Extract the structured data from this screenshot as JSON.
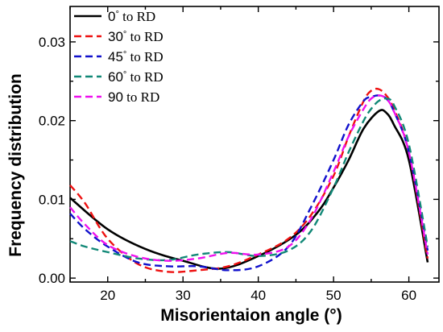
{
  "chart_data": {
    "type": "line",
    "xlabel": "Misorientaion angle (°)",
    "ylabel": "Frequency distribution",
    "xlim": [
      15,
      64
    ],
    "ylim": [
      -0.0005,
      0.0345
    ],
    "xticks": [
      20,
      30,
      40,
      50,
      60
    ],
    "yticks": [
      0.0,
      0.01,
      0.02,
      0.03
    ],
    "ytick_labels": [
      "0.00",
      "0.01",
      "0.02",
      "0.03"
    ],
    "grid": false,
    "legend_position": "top-left",
    "series": [
      {
        "name": "0°  to RD",
        "name_parts": [
          "0",
          "°",
          "  to RD"
        ],
        "color": "#000000",
        "dash": "solid",
        "x": [
          15,
          20,
          25,
          30,
          35,
          40,
          45,
          48,
          50,
          52,
          54,
          56,
          57,
          58,
          60,
          62.5
        ],
        "y": [
          0.0102,
          0.0062,
          0.0037,
          0.0022,
          0.0012,
          0.0028,
          0.0055,
          0.0085,
          0.0115,
          0.015,
          0.019,
          0.0212,
          0.021,
          0.0195,
          0.015,
          0.002
        ]
      },
      {
        "name": "30° to RD",
        "name_parts": [
          "30",
          "°",
          " to RD"
        ],
        "color": "#ee1111",
        "dash": "dashed",
        "x": [
          15,
          17,
          20,
          24,
          28,
          32,
          36,
          40,
          44,
          47,
          50,
          52,
          54,
          55,
          56,
          57,
          58,
          60,
          62.5
        ],
        "y": [
          0.0118,
          0.0095,
          0.005,
          0.0018,
          0.0008,
          0.001,
          0.0015,
          0.003,
          0.005,
          0.008,
          0.013,
          0.018,
          0.0225,
          0.0238,
          0.024,
          0.0232,
          0.0215,
          0.016,
          0.0025
        ]
      },
      {
        "name": "45° to RD",
        "name_parts": [
          "45",
          "°",
          " to RD"
        ],
        "color": "#1111cc",
        "dash": "dashed",
        "x": [
          15,
          17,
          20,
          24,
          28,
          32,
          36,
          40,
          44,
          47,
          50,
          52,
          54,
          55,
          56,
          57,
          58,
          60,
          62.5
        ],
        "y": [
          0.0082,
          0.0062,
          0.004,
          0.002,
          0.0015,
          0.0015,
          0.001,
          0.0015,
          0.004,
          0.009,
          0.015,
          0.0195,
          0.0225,
          0.023,
          0.0232,
          0.0228,
          0.0212,
          0.016,
          0.0035
        ]
      },
      {
        "name": "60° to RD",
        "name_parts": [
          "60",
          "°",
          " to RD"
        ],
        "color": "#118877",
        "dash": "dashed",
        "x": [
          15,
          17,
          20,
          24,
          28,
          32,
          36,
          40,
          44,
          47,
          50,
          52,
          54,
          55,
          56,
          57,
          58,
          60,
          62.5
        ],
        "y": [
          0.0047,
          0.004,
          0.0033,
          0.0025,
          0.0023,
          0.003,
          0.0033,
          0.0028,
          0.0035,
          0.006,
          0.0115,
          0.016,
          0.02,
          0.0215,
          0.0225,
          0.0228,
          0.022,
          0.017,
          0.004
        ]
      },
      {
        "name": "90 to RD",
        "name_parts": [
          "90",
          "",
          " to RD"
        ],
        "color": "#ee11ee",
        "dash": "dashed",
        "x": [
          15,
          17,
          20,
          24,
          28,
          32,
          36,
          40,
          44,
          47,
          50,
          52,
          54,
          55,
          56,
          57,
          58,
          60,
          62.5
        ],
        "y": [
          0.009,
          0.0068,
          0.0042,
          0.0027,
          0.0022,
          0.0025,
          0.0032,
          0.003,
          0.004,
          0.0075,
          0.0135,
          0.018,
          0.0215,
          0.0228,
          0.0232,
          0.0228,
          0.0212,
          0.016,
          0.003
        ]
      }
    ]
  }
}
